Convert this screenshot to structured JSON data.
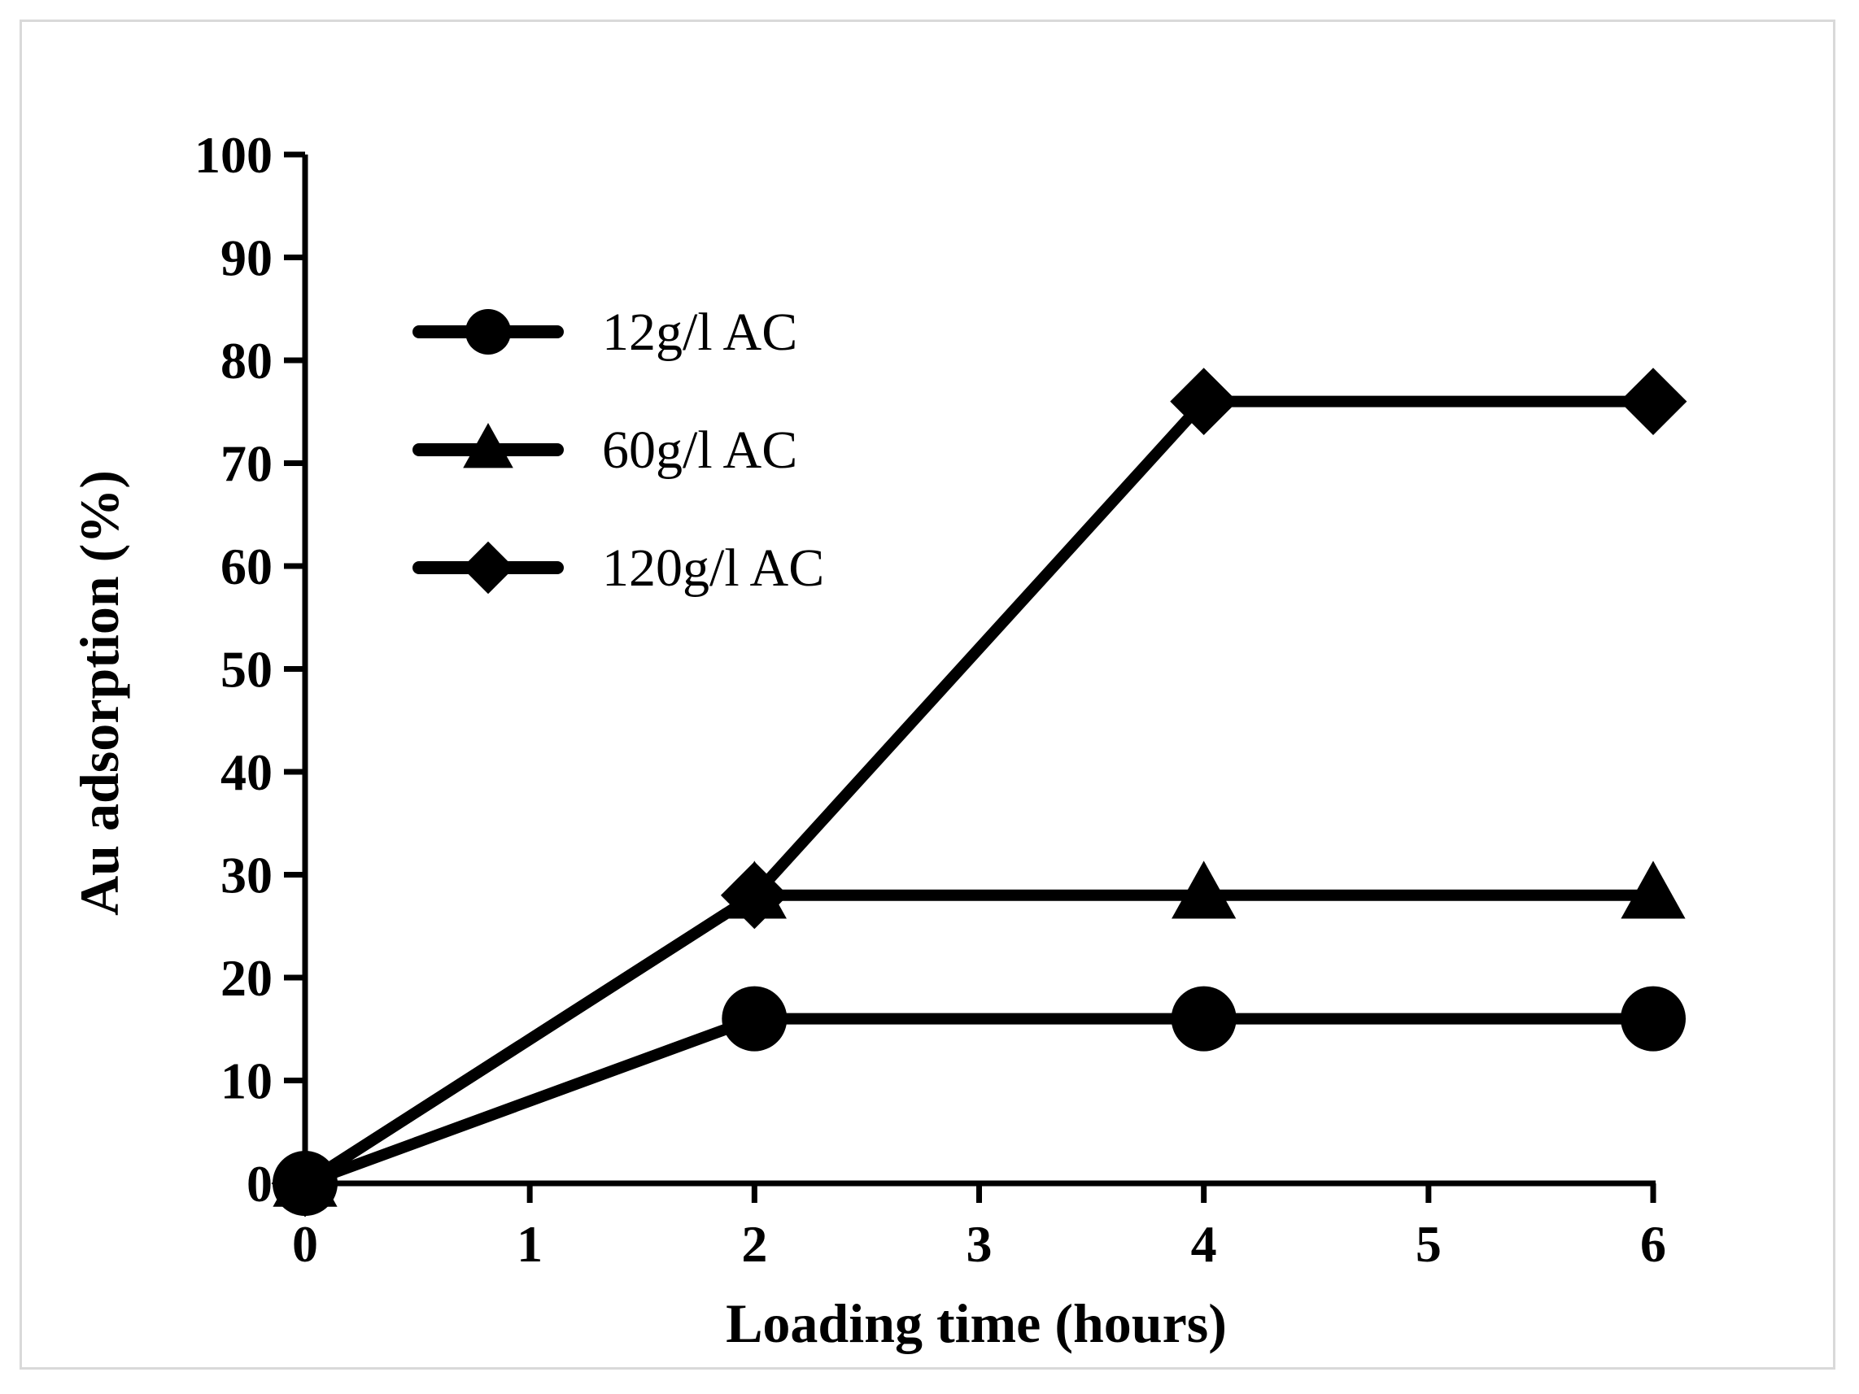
{
  "chart_data": {
    "type": "line",
    "title": "",
    "xlabel": "Loading time (hours)",
    "ylabel": "Au adsorption (%)",
    "xlim": [
      0,
      6
    ],
    "ylim": [
      0,
      100
    ],
    "x_ticks": [
      0,
      1,
      2,
      3,
      4,
      5,
      6
    ],
    "y_ticks": [
      0,
      10,
      20,
      30,
      40,
      50,
      60,
      70,
      80,
      90,
      100
    ],
    "x_tick_labels": [
      "0",
      "1",
      "2",
      "3",
      "4",
      "5",
      "6"
    ],
    "y_tick_labels": [
      "0",
      "10",
      "20",
      "30",
      "40",
      "50",
      "60",
      "70",
      "80",
      "90",
      "100"
    ],
    "grid": false,
    "legend_position": "top-left",
    "series": [
      {
        "name": "12g/l AC",
        "marker": "circle",
        "color": "#000000",
        "x": [
          0,
          2,
          4,
          6
        ],
        "y": [
          0,
          16,
          16,
          16
        ]
      },
      {
        "name": "60g/l AC",
        "marker": "triangle",
        "color": "#000000",
        "x": [
          0,
          2,
          4,
          6
        ],
        "y": [
          0,
          28,
          28,
          28
        ]
      },
      {
        "name": "120g/l AC",
        "marker": "diamond",
        "color": "#000000",
        "x": [
          0,
          2,
          4,
          6
        ],
        "y": [
          0,
          28,
          76,
          76
        ]
      }
    ]
  }
}
